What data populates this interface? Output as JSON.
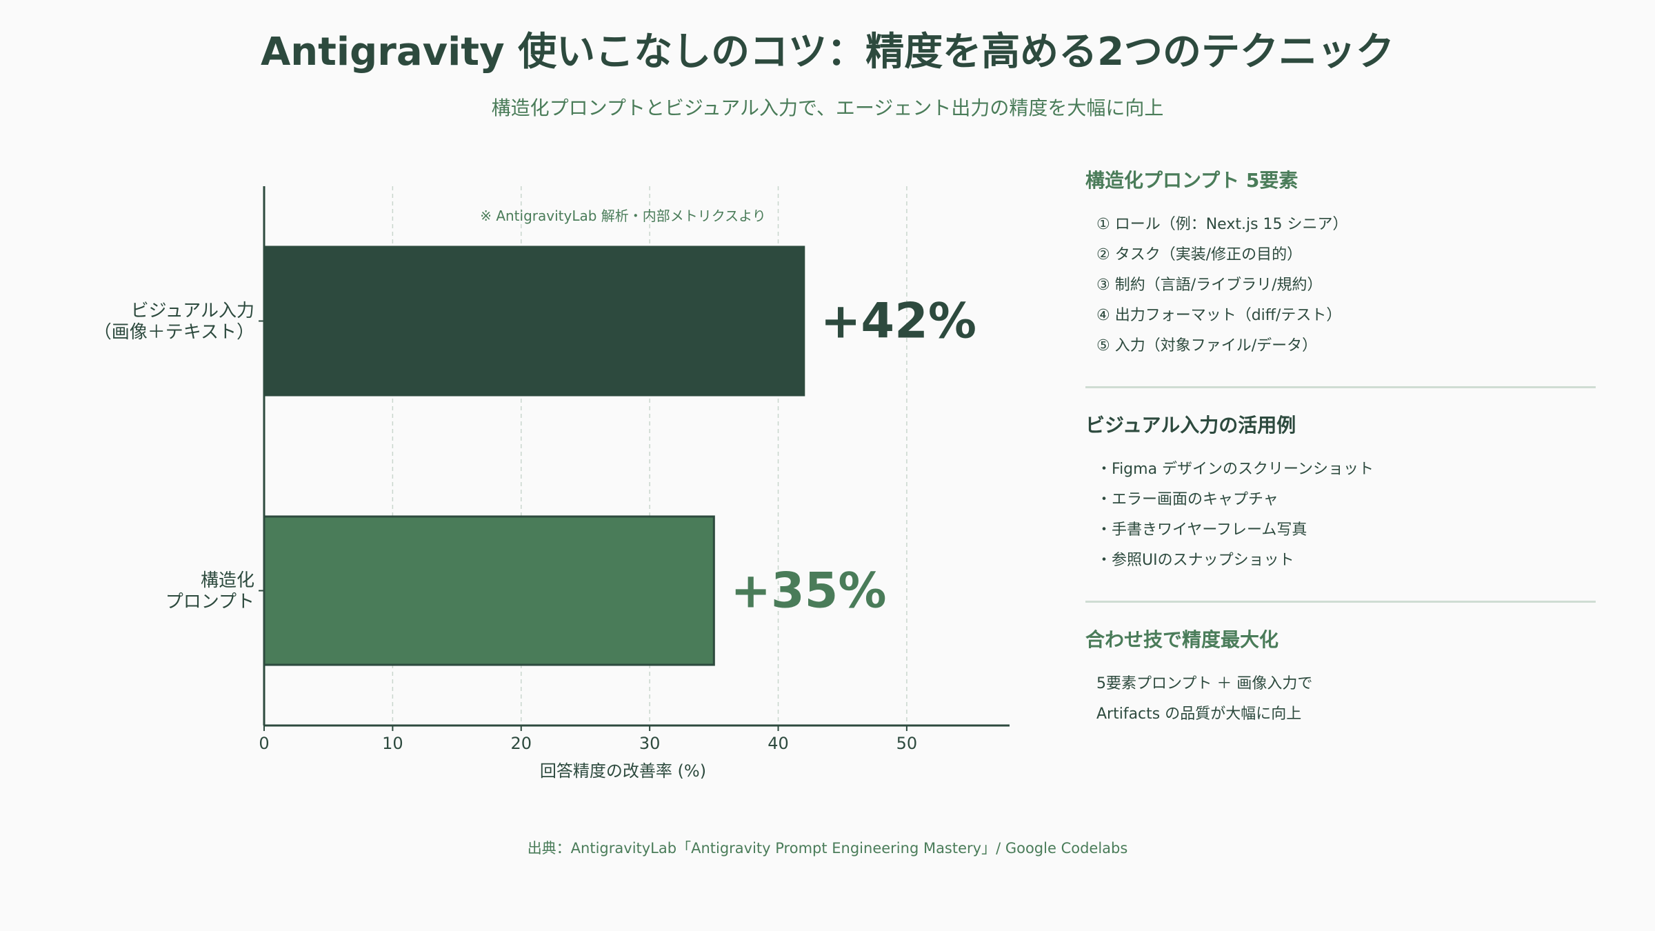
{
  "title": "Antigravity 使いこなしのコツ：精度を高める2つのテクニック",
  "subtitle": "構造化プロンプトとビジュアル入力で、エージェント出力の精度を大幅に向上",
  "chart_data": {
    "type": "bar",
    "orientation": "horizontal",
    "categories": [
      [
        "ビジュアル入力",
        "（画像＋テキスト）"
      ],
      [
        "構造化",
        "プロンプト"
      ]
    ],
    "values": [
      42,
      35
    ],
    "value_labels": [
      "+42%",
      "+35%"
    ],
    "colors": [
      "#2d4a3e",
      "#4a7c59"
    ],
    "xlabel": "回答精度の改善率 (%)",
    "xlim": [
      0,
      58
    ],
    "xticks": [
      0,
      10,
      20,
      30,
      40,
      50
    ],
    "grid": "vertical dashed",
    "annotation": "※ AntigravityLab 解析・内部メトリクスより"
  },
  "panel": {
    "section1": {
      "title": "構造化プロンプト 5要素",
      "items": [
        "① ロール（例：Next.js 15 シニア）",
        "② タスク（実装/修正の目的）",
        "③ 制約（言語/ライブラリ/規約）",
        "④ 出力フォーマット（diff/テスト）",
        "⑤ 入力（対象ファイル/データ）"
      ]
    },
    "section2": {
      "title": "ビジュアル入力の活用例",
      "items": [
        "Figma デザインのスクリーンショット",
        "エラー画面のキャプチャ",
        "手書きワイヤーフレーム写真",
        "参照UIのスナップショット"
      ]
    },
    "section3": {
      "title": "合わせ技で精度最大化",
      "items": [
        "5要素プロンプト ＋ 画像入力で",
        "Artifacts の品質が大幅に向上"
      ]
    }
  },
  "footer": "出典：AntigravityLab「Antigravity Prompt Engineering Mastery」/ Google Codelabs"
}
